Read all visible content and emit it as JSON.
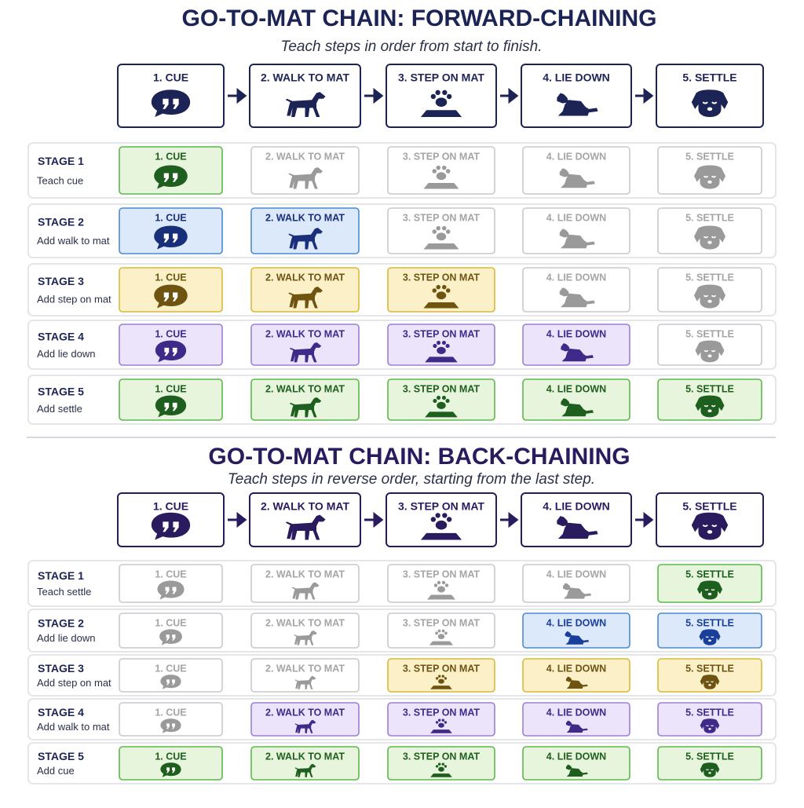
{
  "sections": [
    {
      "title": "GO-TO-MAT CHAIN: FORWARD-CHAINING",
      "subtitle": "Teach steps in order from start to finish.",
      "color": "#1c2456",
      "steps": [
        "1. CUE",
        "2. WALK TO MAT",
        "3. STEP ON MAT",
        "4. LIE DOWN",
        "5. SETTLE"
      ],
      "stages": [
        {
          "label": "STAGE 1",
          "description": "Teach cue",
          "active": [
            true,
            false,
            false,
            false,
            false
          ],
          "fill": "#e6f5dc",
          "stroke": "#5cb84c",
          "ink": "#1e5e1e"
        },
        {
          "label": "STAGE 2",
          "description": "Add walk to mat",
          "active": [
            true,
            true,
            false,
            false,
            false
          ],
          "fill": "#dbe9fb",
          "stroke": "#4a8ad4",
          "ink": "#1a2f7a"
        },
        {
          "label": "STAGE 3",
          "description": "Add step on mat",
          "active": [
            true,
            true,
            true,
            false,
            false
          ],
          "fill": "#fbf0c8",
          "stroke": "#d9b93a",
          "ink": "#6e5410"
        },
        {
          "label": "STAGE 4",
          "description": "Add lie down",
          "active": [
            true,
            true,
            true,
            true,
            false
          ],
          "fill": "#ece4fa",
          "stroke": "#9b7fd6",
          "ink": "#3f2a8a"
        },
        {
          "label": "STAGE 5",
          "description": "Add settle",
          "active": [
            true,
            true,
            true,
            true,
            true
          ],
          "fill": "#e6f5dc",
          "stroke": "#5cb84c",
          "ink": "#1e5e1e"
        }
      ]
    },
    {
      "title": "GO-TO-MAT CHAIN: BACK-CHAINING",
      "subtitle": "Teach steps in reverse order, starting from the last step.",
      "color": "#2a1a5e",
      "steps": [
        "1. CUE",
        "2. WALK TO MAT",
        "3. STEP ON MAT",
        "4. LIE DOWN",
        "5. SETTLE"
      ],
      "stages": [
        {
          "label": "STAGE 1",
          "description": "Teach settle",
          "active": [
            false,
            false,
            false,
            false,
            true
          ],
          "fill": "#e6f5dc",
          "stroke": "#5cb84c",
          "ink": "#1e5e1e"
        },
        {
          "label": "STAGE 2",
          "description": "Add lie down",
          "active": [
            false,
            false,
            false,
            true,
            true
          ],
          "fill": "#dbe9fb",
          "stroke": "#4a8ad4",
          "ink": "#1a3f9a"
        },
        {
          "label": "STAGE 3",
          "description": "Add step on mat",
          "active": [
            false,
            false,
            true,
            true,
            true
          ],
          "fill": "#fbf0c8",
          "stroke": "#d9b93a",
          "ink": "#6e5410"
        },
        {
          "label": "STAGE 4",
          "description": "Add walk to mat",
          "active": [
            false,
            true,
            true,
            true,
            true
          ],
          "fill": "#ece4fa",
          "stroke": "#9b7fd6",
          "ink": "#3f2a8a"
        },
        {
          "label": "STAGE 5",
          "description": "Add cue",
          "active": [
            true,
            true,
            true,
            true,
            true
          ],
          "fill": "#e6f5dc",
          "stroke": "#5cb84c",
          "ink": "#1e5e1e"
        }
      ]
    }
  ]
}
